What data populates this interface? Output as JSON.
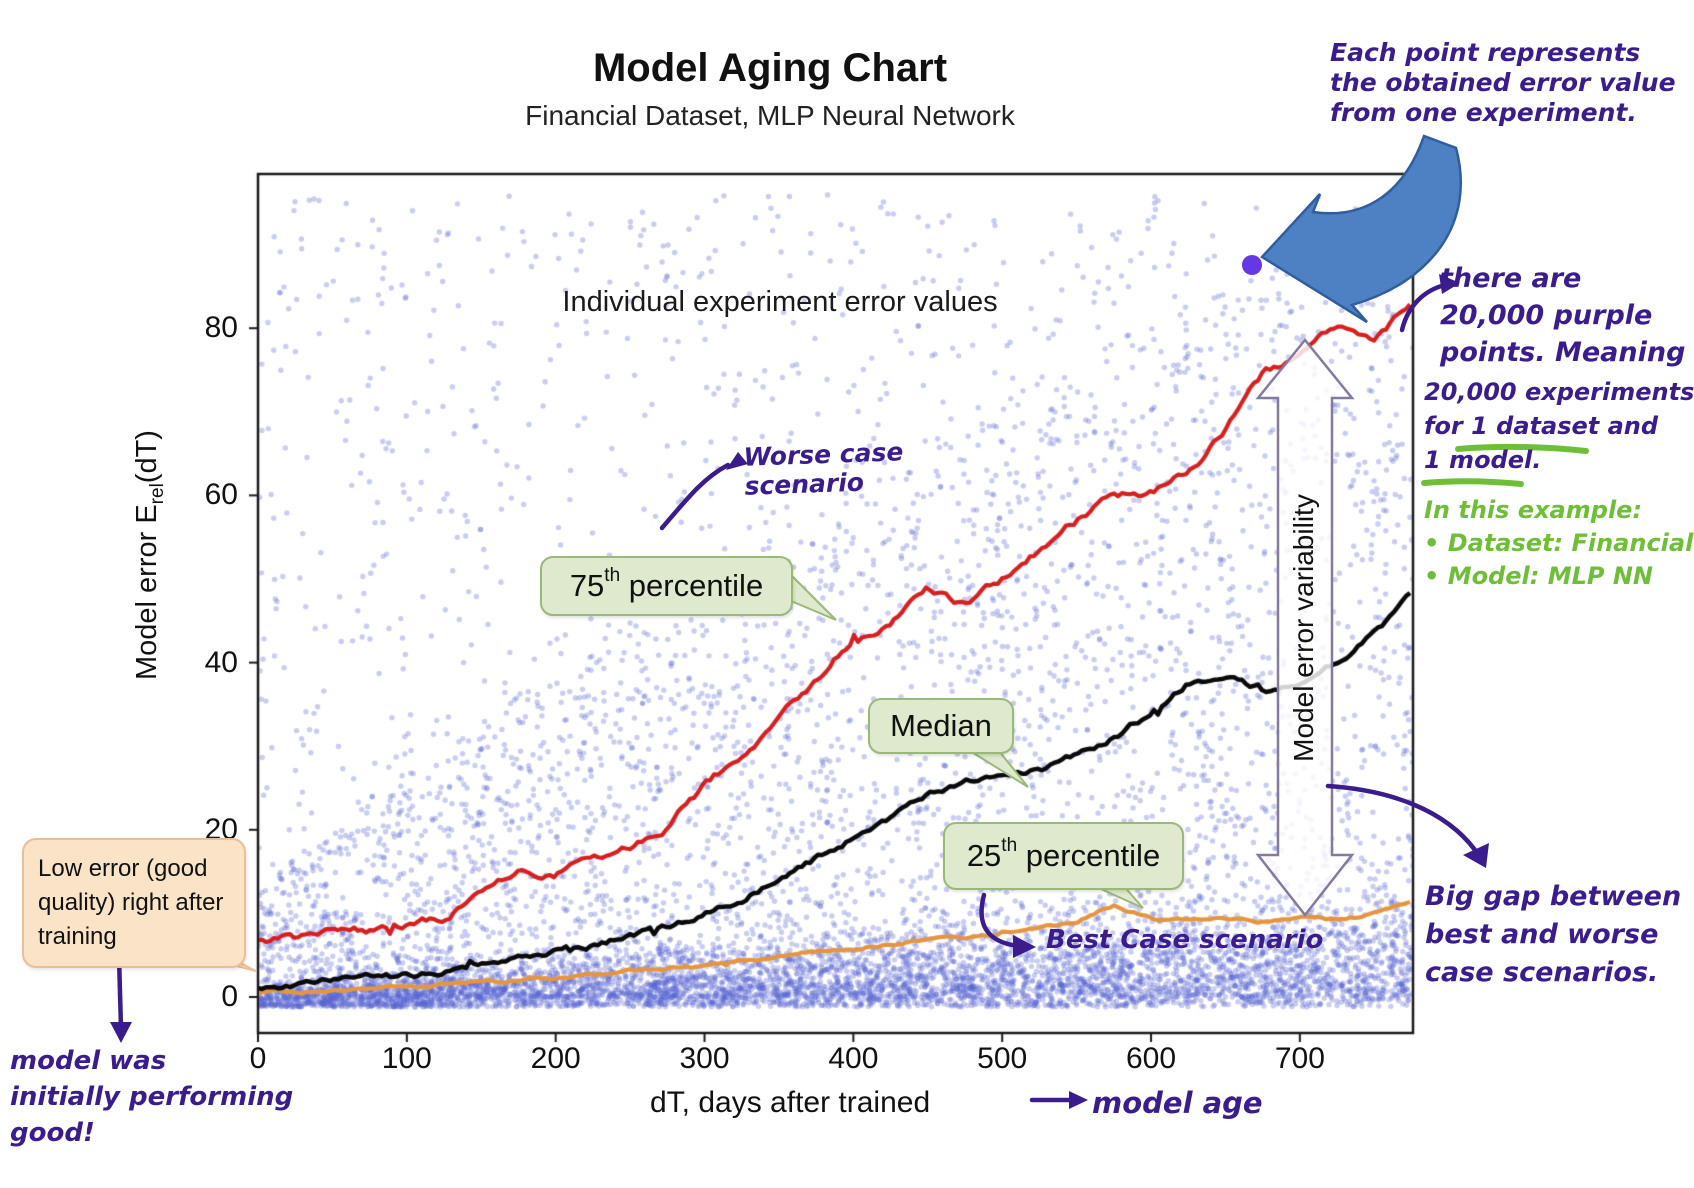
{
  "title": "Model Aging Chart",
  "subtitle": "Financial Dataset, MLP Neural Network",
  "plot": {
    "inner_label": "Individual experiment error values",
    "x_axis": {
      "label": "dT, days after trained"
    },
    "y_axis": {
      "label_prefix": "Model error E",
      "label_sub": "rel",
      "label_suffix": "(dT)"
    }
  },
  "labels": {
    "p75": {
      "num": "75",
      "sup": "th",
      "rest": " percentile"
    },
    "median": "Median",
    "p25": {
      "num": "25",
      "sup": "th",
      "rest": " percentile"
    },
    "variability": "Model error variability"
  },
  "annotations": {
    "each_point": [
      "Each point represents",
      "the obtained error value",
      "from one experiment."
    ],
    "there_are": [
      "there are",
      "20,000 purple",
      "points. Meaning",
      "20,000 experiments",
      "for 1 dataset and",
      "1 model."
    ],
    "in_this_example": [
      "In this example:",
      "• Dataset: Financial",
      "• Model: MLP NN"
    ],
    "worse_case": [
      "Worse case",
      "scenario"
    ],
    "best_case": "Best Case scenario",
    "big_gap": [
      "Big gap between",
      "best and worse",
      "case scenarios."
    ],
    "low_error": [
      "Low error (good",
      "quality) right after",
      "training"
    ],
    "initially": [
      "model was",
      "initially performing",
      "good!"
    ],
    "model_age": "model age"
  },
  "colors": {
    "scatter": "rgba(88,98,208,0.32)",
    "p75": "#d62020",
    "median": "#0a0a0a",
    "p25": "#e5953f",
    "highlight": "#6537e6",
    "handwriting": "#3a1c8c",
    "green_note": "#6fbe3a",
    "blue_arrow": "#4e80c4"
  },
  "chart_data": {
    "type": "scatter",
    "title": "Model Aging Chart",
    "subtitle": "Financial Dataset, MLP Neural Network",
    "xlabel": "dT, days after trained",
    "ylabel": "Model error Erel(dT)",
    "xlim": [
      0,
      776
    ],
    "ylim": [
      -4.3,
      98.5
    ],
    "x_ticks": [
      0,
      100,
      200,
      300,
      400,
      500,
      600,
      700
    ],
    "y_ticks": [
      0,
      20,
      40,
      60,
      80
    ],
    "grid": false,
    "scatter_points": {
      "count_depicted": 20000,
      "meaning": "individual experiment error values",
      "color_name": "purple"
    },
    "x": [
      0,
      25,
      50,
      75,
      100,
      125,
      150,
      175,
      200,
      225,
      250,
      275,
      300,
      325,
      350,
      375,
      400,
      425,
      450,
      475,
      500,
      525,
      550,
      575,
      600,
      625,
      650,
      675,
      700,
      725,
      750,
      775
    ],
    "series": [
      {
        "name": "75th percentile",
        "role": "worse case scenario",
        "color": "#d62020",
        "values": [
          6.5,
          7,
          7.5,
          8,
          8.5,
          9.5,
          13,
          15.2,
          15,
          16.5,
          18,
          20.5,
          25,
          29,
          33,
          38,
          43,
          44.5,
          48.5,
          47,
          50,
          53.5,
          57,
          60.5,
          60,
          62.5,
          68,
          74.5,
          76,
          80,
          77.5,
          83
        ]
      },
      {
        "name": "Median",
        "role": "median",
        "color": "#0a0a0a",
        "values": [
          1.3,
          1.5,
          1.8,
          2.1,
          2.5,
          3,
          3.6,
          4.3,
          5.2,
          6.2,
          7.3,
          8.6,
          10,
          12,
          14,
          16.5,
          19,
          21.5,
          24,
          26,
          26.5,
          27,
          29,
          31,
          34,
          37.5,
          38,
          36.5,
          37.5,
          40,
          43.5,
          48
        ]
      },
      {
        "name": "25th percentile",
        "role": "best case scenario",
        "color": "#e5953f",
        "values": [
          0.5,
          0.6,
          0.8,
          1,
          1.2,
          1.4,
          1.7,
          2,
          2.3,
          2.6,
          3,
          3.4,
          3.9,
          4.4,
          4.9,
          5.4,
          5.8,
          6.3,
          6.8,
          7.2,
          7.6,
          8.2,
          9,
          11,
          9.5,
          9,
          9.3,
          9,
          9.4,
          9.1,
          9.8,
          11.2
        ]
      }
    ],
    "highlight_point": {
      "x": 668,
      "y": 87.5,
      "color": "#6537e6"
    }
  }
}
